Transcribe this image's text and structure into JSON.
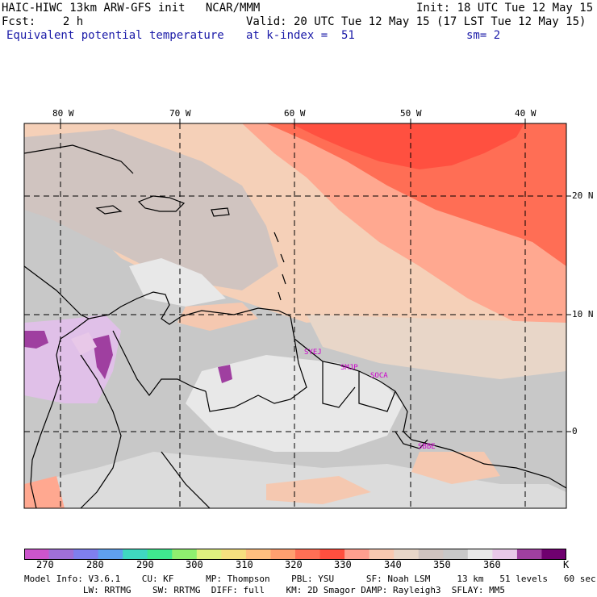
{
  "header": {
    "model_line": "HAIC-HIWC 13km ARW-GFS init   NCAR/MMM",
    "init_line": "Init: 18 UTC Tue 12 May 15",
    "fcst_line": "Fcst:    2 h",
    "valid_line": "Valid: 20 UTC Tue 12 May 15 (17 LST Tue 12 May 15)",
    "field_name": "Equivalent potential temperature",
    "level_line": "at k-index =  51",
    "smooth_line": "sm= 2"
  },
  "map": {
    "lon_labels": [
      "80 W",
      "70 W",
      "60 W",
      "50 W",
      "40 W"
    ],
    "lat_labels": [
      "20 N",
      "10 N",
      "0"
    ],
    "stations": [
      "SYEJ",
      "SMJP",
      "SOCA",
      "SBBE"
    ]
  },
  "colorbar": {
    "unit": "K",
    "labels": [
      "270",
      "280",
      "290",
      "300",
      "310",
      "320",
      "330",
      "340",
      "350",
      "360"
    ],
    "colors": [
      "#cc55cc",
      "#9f6fd8",
      "#7f7fee",
      "#5fa0ee",
      "#3fd8c0",
      "#3fe88f",
      "#8fef6f",
      "#dff07f",
      "#f5e07f",
      "#ffc07f",
      "#ff9f6f",
      "#ff6f55",
      "#ff4f3f",
      "#ff9f8f",
      "#f8c8b0",
      "#e8d6c8",
      "#d0c4c0",
      "#c8c8c8",
      "#e8e8e8",
      "#e8c8e8",
      "#9f3fa0",
      "#6f006f"
    ]
  },
  "footer": {
    "line1": "Model Info: V3.6.1    CU: KF      MP: Thompson    PBL: YSU      SF: Noah LSM     13 km   51 levels   60 sec",
    "line2": "           LW: RRTMG    SW: RRTMG  DIFF: full    KM: 2D Smagor DAMP: Rayleigh3  SFLAY: MM5"
  }
}
